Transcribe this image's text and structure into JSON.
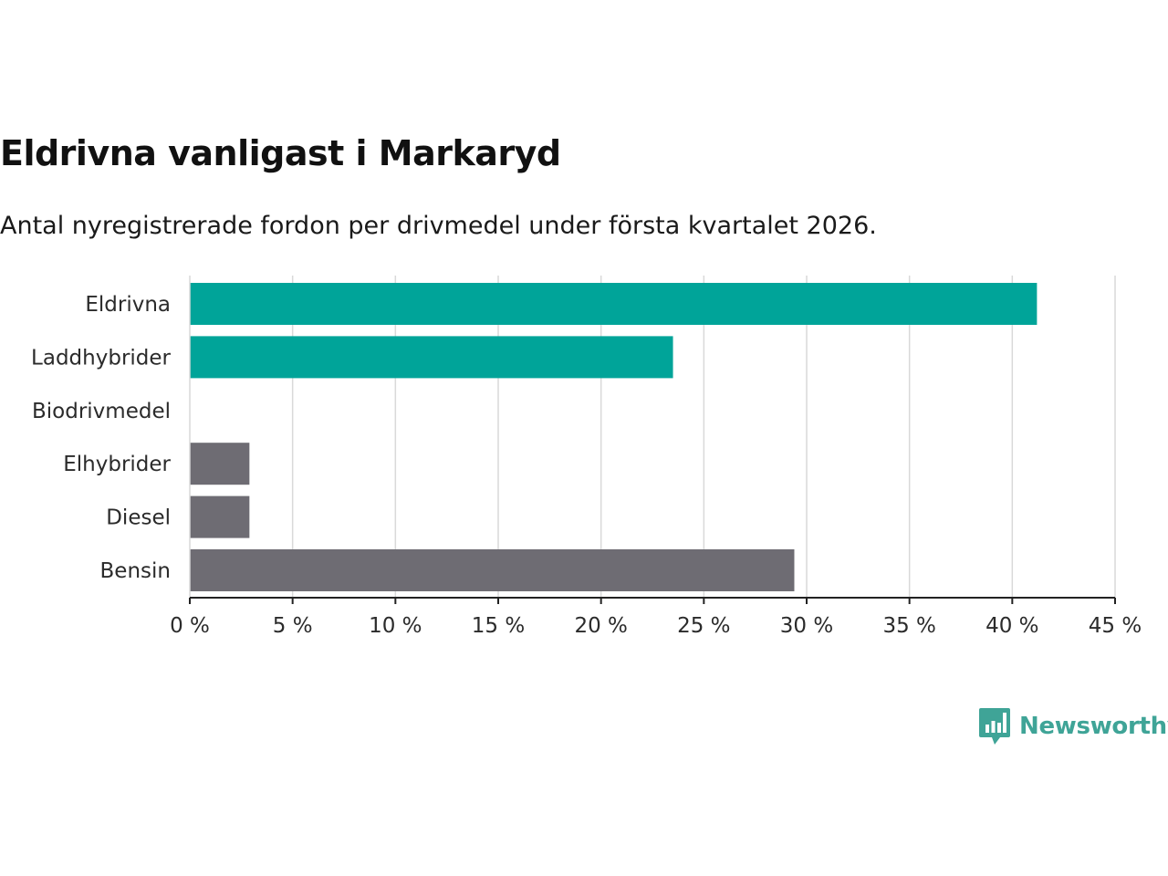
{
  "header": {
    "title": "Eldrivna vanligast i Markaryd",
    "subtitle": "Antal nyregistrerade fordon per drivmedel under första kvartalet 2026."
  },
  "brand": {
    "name": "Newsworthy",
    "icon": "newsworthy-logo-icon",
    "color": "#3fa497"
  },
  "colors": {
    "highlight": "#00a499",
    "neutral": "#6e6c73",
    "gridline": "#d9d9d9",
    "axis": "#222222"
  },
  "chart_data": {
    "type": "bar",
    "orientation": "horizontal",
    "title": "Eldrivna vanligast i Markaryd",
    "subtitle": "Antal nyregistrerade fordon per drivmedel under första kvartalet 2026.",
    "xlabel": "",
    "ylabel": "",
    "categories": [
      "Eldrivna",
      "Laddhybrider",
      "Biodrivmedel",
      "Elhybrider",
      "Diesel",
      "Bensin"
    ],
    "values": [
      41.2,
      23.5,
      0,
      2.9,
      2.9,
      29.4
    ],
    "bar_colors": [
      "#00a499",
      "#00a499",
      "#00a499",
      "#6e6c73",
      "#6e6c73",
      "#6e6c73"
    ],
    "xlim": [
      0,
      45
    ],
    "xticks": [
      0,
      5,
      10,
      15,
      20,
      25,
      30,
      35,
      40,
      45
    ],
    "xtick_labels": [
      "0 %",
      "5 %",
      "10 %",
      "15 %",
      "20 %",
      "25 %",
      "30 %",
      "35 %",
      "40 %",
      "45 %"
    ],
    "unit": "%",
    "grid": "vertical",
    "legend": "none"
  }
}
